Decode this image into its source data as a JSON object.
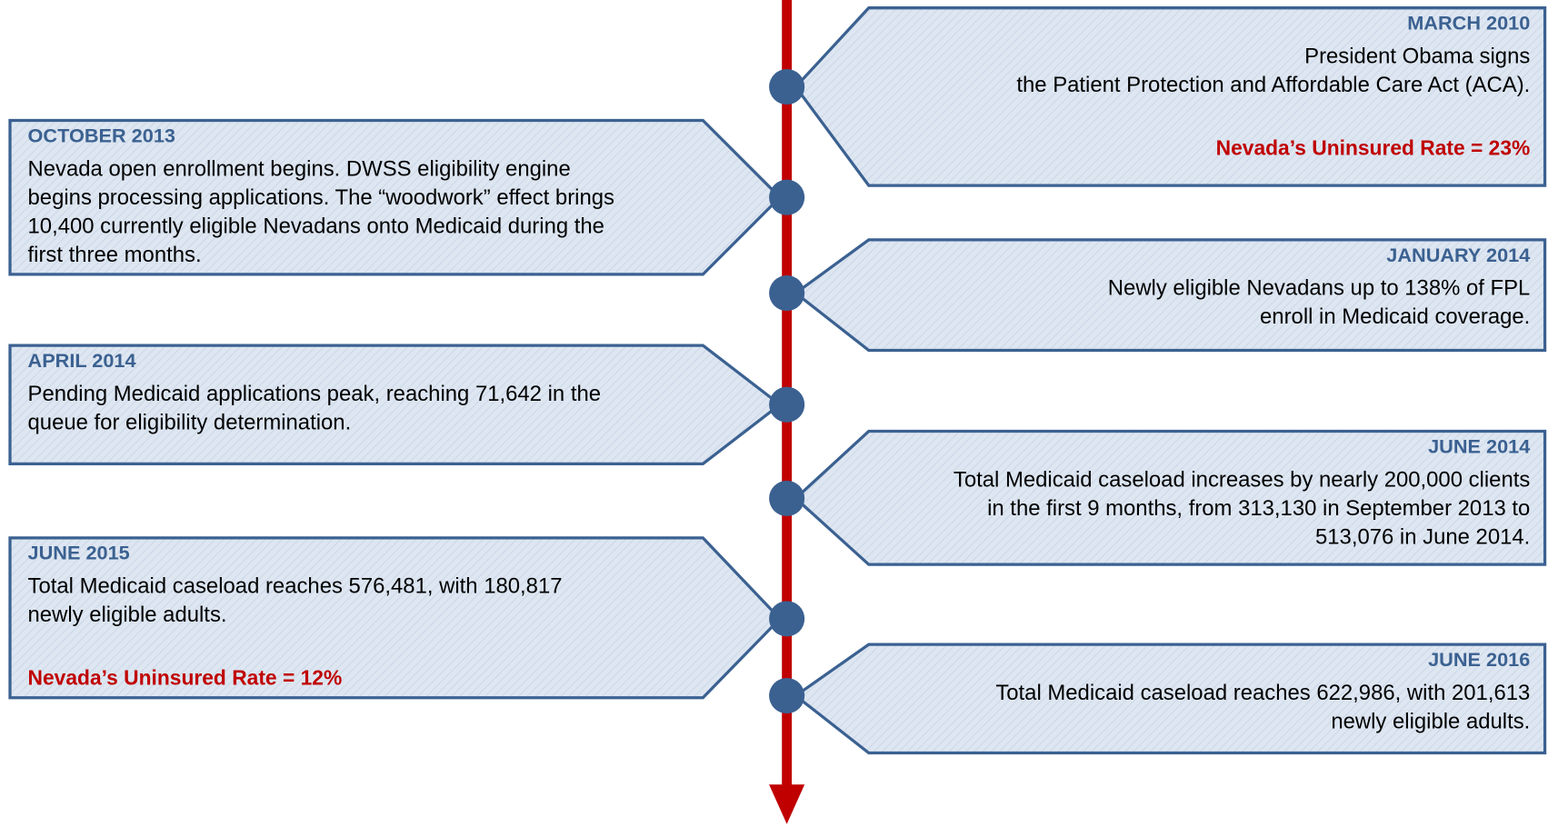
{
  "events": [
    {
      "date": "MARCH 2010",
      "lines": [
        "President Obama signs",
        "the Patient Protection and Affordable Care Act (ACA)."
      ],
      "rate": "Nevada’s Uninsured Rate = 23%"
    },
    {
      "date": "OCTOBER 2013",
      "lines": [
        "Nevada open enrollment begins. DWSS eligibility engine",
        "begins processing applications. The “woodwork” effect brings",
        "10,400 currently eligible Nevadans onto Medicaid during the",
        "first three months."
      ]
    },
    {
      "date": "JANUARY 2014",
      "lines": [
        "Newly eligible Nevadans up to 138% of FPL",
        "enroll in Medicaid coverage."
      ]
    },
    {
      "date": "APRIL 2014",
      "lines": [
        "Pending Medicaid applications peak, reaching 71,642 in the",
        "queue for eligibility determination."
      ]
    },
    {
      "date": "JUNE 2014",
      "lines": [
        "Total Medicaid caseload increases by nearly 200,000 clients",
        "in the first 9 months, from 313,130 in September 2013 to",
        "513,076 in June 2014."
      ]
    },
    {
      "date": "JUNE 2015",
      "lines": [
        "Total Medicaid caseload reaches 576,481, with 180,817",
        "newly eligible adults."
      ],
      "rate": "Nevada’s Uninsured Rate = 12%"
    },
    {
      "date": "JUNE 2016",
      "lines": [
        "Total Medicaid caseload reaches 622,986, with 201,613",
        "newly eligible adults."
      ]
    }
  ]
}
